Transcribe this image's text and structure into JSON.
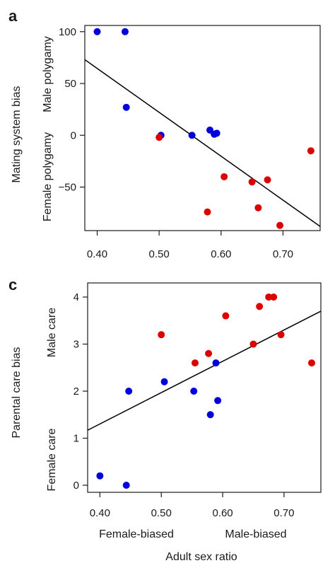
{
  "chart_data": [
    {
      "type": "scatter",
      "panel": "a",
      "ylabel": "Mating system bias",
      "y_annotations": {
        "top": "Male polygamy",
        "bottom": "Female polygamy"
      },
      "xlim": [
        0.38,
        0.76
      ],
      "ylim": [
        -92,
        106
      ],
      "xticks": [
        "0.40",
        "0.50",
        "0.60",
        "0.70"
      ],
      "yticks": [
        "100",
        "50",
        "0",
        "−50"
      ],
      "xtick_values": [
        0.4,
        0.5,
        0.6,
        0.7
      ],
      "ytick_values": [
        100,
        50,
        0,
        -50
      ],
      "series": [
        {
          "color": "#0000dd",
          "points": [
            [
              0.4,
              100
            ],
            [
              0.445,
              100
            ],
            [
              0.447,
              27
            ],
            [
              0.503,
              0
            ],
            [
              0.553,
              0
            ],
            [
              0.582,
              5
            ],
            [
              0.589,
              1
            ],
            [
              0.593,
              2
            ]
          ]
        },
        {
          "color": "#dd0000",
          "points": [
            [
              0.5,
              -2
            ],
            [
              0.578,
              -74
            ],
            [
              0.605,
              -40
            ],
            [
              0.65,
              -45
            ],
            [
              0.66,
              -70
            ],
            [
              0.675,
              -43
            ],
            [
              0.695,
              -87
            ],
            [
              0.745,
              -15
            ]
          ]
        }
      ],
      "trendline": [
        [
          0.38,
          73
        ],
        [
          0.76,
          -88
        ]
      ]
    },
    {
      "type": "scatter",
      "panel": "c",
      "ylabel": "Parental care bias",
      "y_annotations": {
        "top": "Male care",
        "bottom": "Female care"
      },
      "xlim": [
        0.38,
        0.76
      ],
      "ylim": [
        -0.15,
        4.3
      ],
      "xticks": [
        "0.40",
        "0.50",
        "0.60",
        "0.70"
      ],
      "yticks": [
        "4",
        "3",
        "2",
        "1",
        "0"
      ],
      "xtick_values": [
        0.4,
        0.5,
        0.6,
        0.7
      ],
      "ytick_values": [
        4,
        3,
        2,
        1,
        0
      ],
      "series": [
        {
          "color": "#0000dd",
          "points": [
            [
              0.4,
              0.2
            ],
            [
              0.443,
              0.0
            ],
            [
              0.447,
              2.0
            ],
            [
              0.505,
              2.2
            ],
            [
              0.553,
              2.0
            ],
            [
              0.58,
              1.5
            ],
            [
              0.589,
              2.6
            ],
            [
              0.592,
              1.8
            ]
          ]
        },
        {
          "color": "#dd0000",
          "points": [
            [
              0.5,
              3.2
            ],
            [
              0.555,
              2.6
            ],
            [
              0.577,
              2.8
            ],
            [
              0.605,
              3.6
            ],
            [
              0.65,
              3.0
            ],
            [
              0.66,
              3.8
            ],
            [
              0.675,
              4.0
            ],
            [
              0.683,
              4.0
            ],
            [
              0.695,
              3.2
            ],
            [
              0.745,
              2.6
            ]
          ]
        }
      ],
      "trendline": [
        [
          0.38,
          1.17
        ],
        [
          0.76,
          3.7
        ]
      ]
    }
  ],
  "bottom_labels": {
    "left": "Female-biased",
    "right": "Male-biased"
  },
  "xlabel": "Adult sex ratio"
}
